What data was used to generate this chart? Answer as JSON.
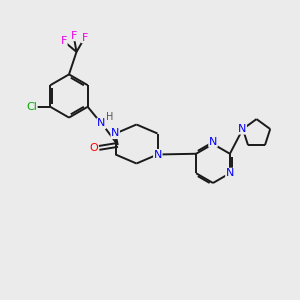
{
  "background_color": "#ebebeb",
  "bond_color": "#1a1a1a",
  "N_color": "#0000ff",
  "O_color": "#ff0000",
  "Cl_color": "#00aa00",
  "F_color": "#ee00ee",
  "H_color": "#555555",
  "font_size": 8,
  "lw": 1.4,
  "xlim": [
    0,
    10
  ],
  "ylim": [
    0,
    10
  ]
}
